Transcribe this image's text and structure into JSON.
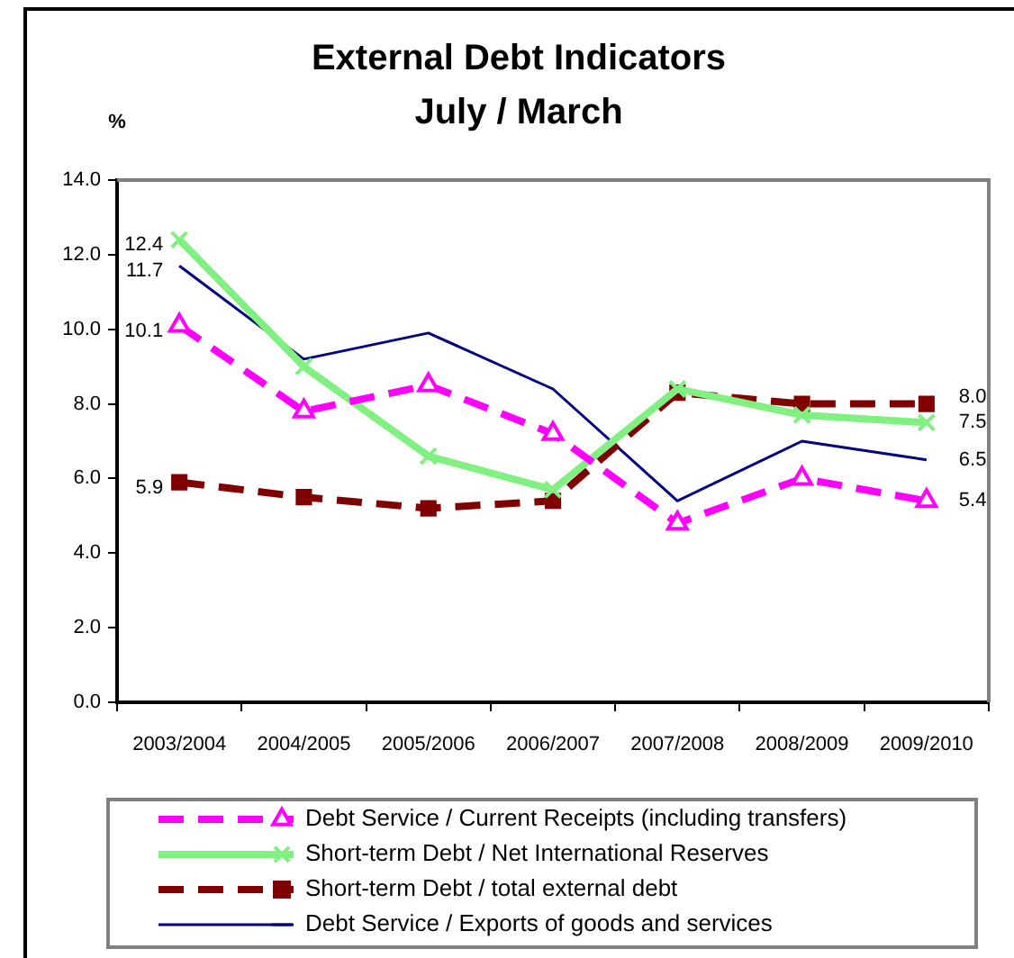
{
  "chart_data": {
    "type": "line",
    "title": "External Debt Indicators",
    "subtitle": "July / March",
    "ylabel": "%",
    "categories": [
      "2003/2004",
      "2004/2005",
      "2005/2006",
      "2006/2007",
      "2007/2008",
      "2008/2009",
      "2009/2010"
    ],
    "ylim": [
      0,
      14
    ],
    "yticks": [
      {
        "value": 0,
        "label": "0.0"
      },
      {
        "value": 2,
        "label": "2.0"
      },
      {
        "value": 4,
        "label": "4.0"
      },
      {
        "value": 6,
        "label": "6.0"
      },
      {
        "value": 8,
        "label": "8.0"
      },
      {
        "value": 10,
        "label": "10.0"
      },
      {
        "value": 12,
        "label": "12.0"
      },
      {
        "value": 14,
        "label": "14.0"
      }
    ],
    "grid": false,
    "legend": "bottom",
    "series": [
      {
        "name": "Debt Service / Current Receipts (including transfers)",
        "color": "#ff00ff",
        "marker": "triangle",
        "line_style": "dashed",
        "values": [
          10.1,
          7.8,
          8.5,
          7.2,
          4.8,
          6.0,
          5.4
        ],
        "value_labels": [
          "10.1",
          null,
          null,
          null,
          null,
          null,
          "5.4"
        ]
      },
      {
        "name": "Short-term Debt / Net International Reserves",
        "color": "#80f080",
        "marker": "cross",
        "line_style": "solid",
        "values": [
          12.4,
          9.0,
          6.6,
          5.7,
          8.4,
          7.7,
          7.5
        ],
        "value_labels": [
          "12.4",
          null,
          null,
          null,
          null,
          null,
          "7.5"
        ]
      },
      {
        "name": "Short-term Debt / total external debt",
        "color": "#800000",
        "marker": "square",
        "line_style": "dashed",
        "values": [
          5.9,
          5.5,
          5.2,
          5.4,
          8.3,
          8.0,
          8.0
        ],
        "value_labels": [
          "5.9",
          null,
          null,
          null,
          null,
          null,
          "8.0"
        ]
      },
      {
        "name": "Debt Service / Exports of goods and services",
        "color": "#000080",
        "marker": "none",
        "line_style": "solid",
        "values": [
          11.7,
          9.2,
          9.9,
          8.4,
          5.4,
          7.0,
          6.5
        ],
        "value_labels": [
          "11.7",
          null,
          null,
          null,
          null,
          null,
          "6.5"
        ]
      }
    ]
  }
}
